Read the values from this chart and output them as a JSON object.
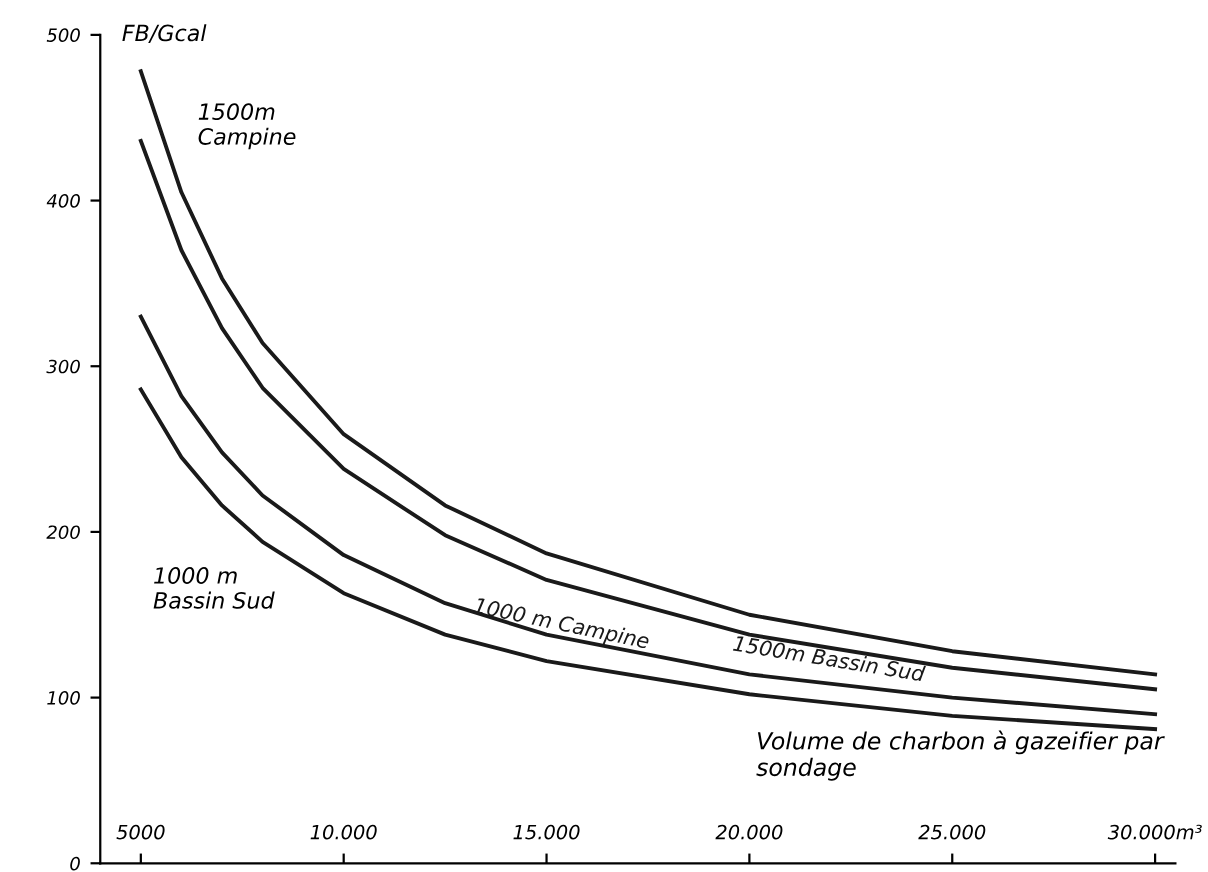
{
  "chart_data": {
    "type": "line",
    "ylabel": "FB/Gcal",
    "xlabel": "Volume de charbon à gazeifier par sondage",
    "x": [
      5000,
      6000,
      7000,
      8000,
      10000,
      12500,
      15000,
      20000,
      25000,
      30000
    ],
    "series": [
      {
        "name": "1500m Campine",
        "color": "#1a1a1a",
        "values": [
          478,
          405,
          353,
          314,
          259,
          216,
          187,
          150,
          128,
          114
        ]
      },
      {
        "name": "1500m Bassin Sud",
        "color": "#1a1a1a",
        "values": [
          436,
          370,
          323,
          287,
          238,
          198,
          171,
          138,
          118,
          105
        ]
      },
      {
        "name": "1000 m Campine",
        "color": "#1a1a1a",
        "values": [
          330,
          282,
          248,
          222,
          186,
          157,
          138,
          114,
          100,
          90
        ]
      },
      {
        "name": "1000 m Bassin Sud",
        "color": "#1a1a1a",
        "values": [
          286,
          245,
          216,
          194,
          163,
          138,
          122,
          102,
          89,
          81
        ]
      }
    ],
    "xlim": [
      4000,
      30500
    ],
    "ylim": [
      0,
      500
    ],
    "xticks": [
      5000,
      {
        "value": 10000,
        "label": "10.000"
      },
      {
        "value": 15000,
        "label": "15.000"
      },
      {
        "value": 20000,
        "label": "20.000"
      },
      {
        "value": 25000,
        "label": "25.000"
      },
      {
        "value": 30000,
        "label": "30.000m³"
      }
    ],
    "yticks": [
      0,
      100,
      200,
      300,
      400,
      500
    ],
    "grid": false,
    "legend": false,
    "marker": "none",
    "line_style": "solid"
  }
}
